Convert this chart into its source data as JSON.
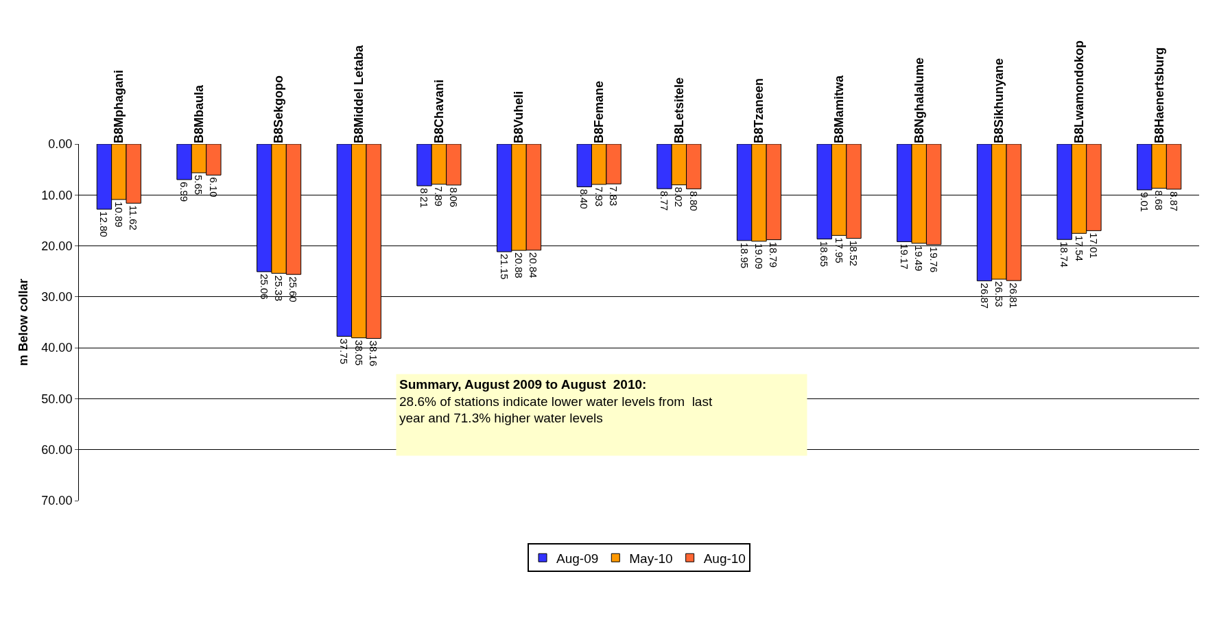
{
  "chart_data": {
    "type": "bar",
    "ylabel": "m Below collar",
    "categories": [
      "B8Mphagani",
      "B8Mbaula",
      "B8Sekgopo",
      "B8Middel Letaba",
      "B8Chavani",
      "B8Vuheli",
      "B8Femane",
      "B8Letsitele",
      "B8Tzaneen",
      "B8Mamitwa",
      "B8Nghalalume",
      "B8Sikhunyane",
      "B8Lwamondokop",
      "B8Haenertsburg"
    ],
    "series": [
      {
        "name": "Aug-09",
        "color": "#3333ff",
        "values": [
          12.8,
          6.99,
          25.06,
          37.75,
          8.21,
          21.15,
          8.4,
          8.77,
          18.95,
          18.65,
          19.17,
          26.87,
          18.74,
          9.01
        ],
        "value_labels": [
          "12.80",
          "6.99",
          "25.06",
          "37.75",
          "8.21",
          "21.15",
          "8.40",
          "8.77",
          "18.95",
          "18.65",
          "19.17",
          "26.87",
          "18.74",
          "9.01"
        ]
      },
      {
        "name": "May-10",
        "color": "#ff9900",
        "values": [
          10.89,
          5.65,
          25.38,
          38.05,
          7.89,
          20.88,
          7.93,
          8.02,
          19.09,
          17.95,
          19.49,
          26.53,
          17.54,
          8.68
        ],
        "value_labels": [
          "10.89",
          "5.65",
          "25.38",
          "38.05",
          "7.89",
          "20.88",
          "7.93",
          "8.02",
          "19.09",
          "17.95",
          "19.49",
          "26.53",
          "17.54",
          "8.68"
        ]
      },
      {
        "name": "Aug-10",
        "color": "#ff6633",
        "values": [
          11.62,
          6.1,
          25.6,
          38.16,
          8.06,
          20.84,
          7.83,
          8.8,
          18.79,
          18.52,
          19.76,
          26.81,
          17.01,
          8.87
        ],
        "value_labels": [
          "11.62",
          "6.10",
          "25.60",
          "38.16",
          "8.06",
          "20.84",
          "7.83",
          "8.80",
          "18.79",
          "18.52",
          "19.76",
          "26.81",
          "17.01",
          "8.87"
        ]
      }
    ],
    "ylim": [
      70,
      0
    ],
    "yticks": [
      {
        "value": 0,
        "label": "0.00"
      },
      {
        "value": 10,
        "label": "10.00"
      },
      {
        "value": 20,
        "label": "20.00"
      },
      {
        "value": 30,
        "label": "30.00"
      },
      {
        "value": 40,
        "label": "40.00"
      },
      {
        "value": 50,
        "label": "50.00"
      },
      {
        "value": 60,
        "label": "60.00"
      },
      {
        "value": 70,
        "label": "70.00"
      }
    ],
    "grid": "y",
    "legend": "bottom",
    "annotations": [
      "Summary, August 2009 to August  2010:",
      "28.6% of stations indicate lower water levels from  last year and 71.3% higher water levels"
    ]
  }
}
